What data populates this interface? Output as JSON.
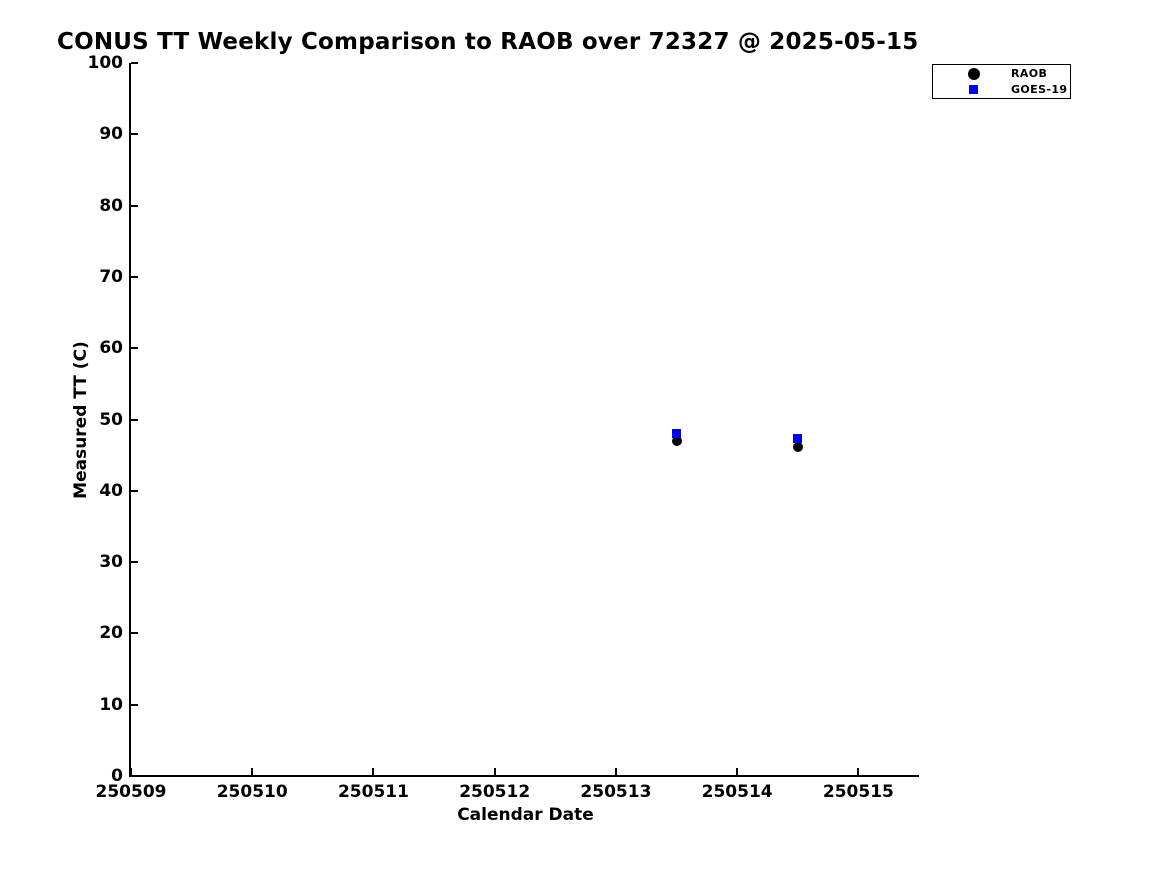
{
  "chart_data": {
    "type": "scatter",
    "title": "CONUS TT Weekly Comparison to RAOB over 72327 @ 2025-05-15",
    "xlabel": "Calendar Date",
    "ylabel": "Measured TT (C)",
    "xlim": [
      250509,
      250515.5
    ],
    "ylim": [
      0,
      100
    ],
    "xticks": [
      250509,
      250510,
      250511,
      250512,
      250513,
      250514,
      250515
    ],
    "yticks": [
      0,
      10,
      20,
      30,
      40,
      50,
      60,
      70,
      80,
      90,
      100
    ],
    "grid": false,
    "legend_position": "upper-right",
    "series": [
      {
        "name": "RAOB",
        "marker": "circle",
        "color": "#000000",
        "points": [
          {
            "x": 250513.5,
            "y": 47.0
          },
          {
            "x": 250514.5,
            "y": 46.2
          }
        ]
      },
      {
        "name": "GOES-19",
        "marker": "square",
        "color": "#0000ee",
        "points": [
          {
            "x": 250513.5,
            "y": 48.0
          },
          {
            "x": 250514.5,
            "y": 47.3
          }
        ]
      }
    ]
  }
}
